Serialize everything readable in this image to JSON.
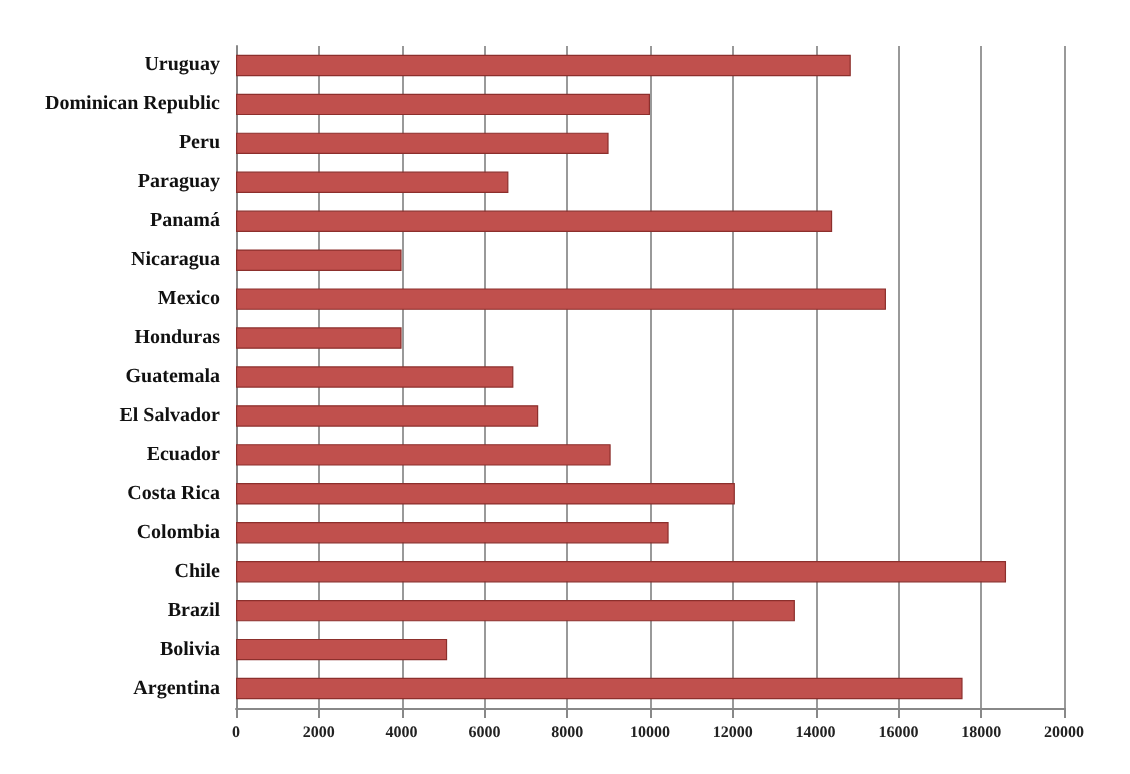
{
  "chart_data": {
    "type": "bar",
    "orientation": "horizontal",
    "categories": [
      "Uruguay",
      "Dominican Republic",
      "Peru",
      "Paraguay",
      "Panamá",
      "Nicaragua",
      "Mexico",
      "Honduras",
      "Guatemala",
      "El Salvador",
      "Ecuador",
      "Costa Rica",
      "Colombia",
      "Chile",
      "Brazil",
      "Bolivia",
      "Argentina"
    ],
    "values": [
      14850,
      10000,
      9000,
      6580,
      14400,
      4000,
      15700,
      4000,
      6700,
      7300,
      9050,
      12050,
      10450,
      18600,
      13500,
      5100,
      17550
    ],
    "color": "#c0504d",
    "xlim": [
      0,
      20000
    ],
    "xticks": [
      0,
      2000,
      4000,
      6000,
      8000,
      10000,
      12000,
      14000,
      16000,
      18000,
      20000
    ],
    "grid": "x"
  }
}
